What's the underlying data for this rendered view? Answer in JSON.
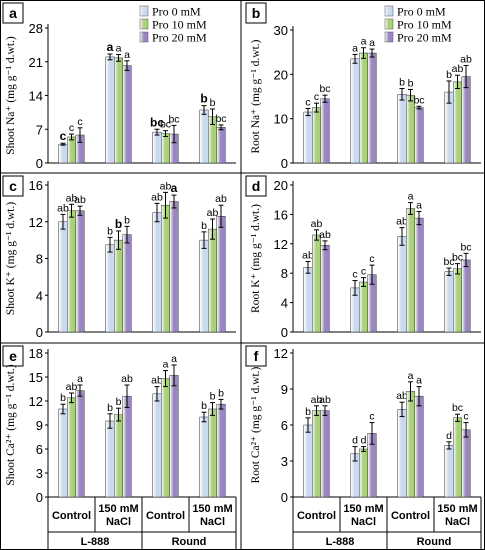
{
  "legend": [
    "Pro 0 mM",
    "Pro 10 mM",
    "Pro 20 mM"
  ],
  "colors": {
    "pro0": "#c9d9f0",
    "pro10": "#a9d07a",
    "pro20": "#9a86c0",
    "border": "#000000"
  },
  "groups": {
    "treatments": [
      "Control",
      "150 mM NaCl",
      "Control",
      "150 mM NaCl"
    ],
    "varieties": [
      "L-888",
      "Round"
    ]
  },
  "chart_data": [
    {
      "panel": "a",
      "type": "bar",
      "ylabel": "Shoot Na⁺ (mg g⁻¹ d.wt.)",
      "ylim": [
        0,
        28
      ],
      "yticks": [
        0,
        7,
        14,
        21,
        28
      ],
      "categories": [
        "L-888 Control",
        "L-888 150 mM NaCl",
        "Round Control",
        "Round 150 mM NaCl"
      ],
      "series": [
        {
          "name": "Pro 0 mM",
          "values": [
            3.9,
            22.0,
            6.4,
            11.0
          ],
          "errors": [
            0.2,
            0.6,
            0.6,
            0.9
          ]
        },
        {
          "name": "Pro 10 mM",
          "values": [
            5.4,
            21.8,
            6.1,
            9.6
          ],
          "errors": [
            0.6,
            0.7,
            0.6,
            1.6
          ]
        },
        {
          "name": "Pro 20 mM",
          "values": [
            5.8,
            20.2,
            6.0,
            7.4
          ],
          "errors": [
            1.5,
            1.0,
            1.8,
            0.5
          ]
        }
      ],
      "labels": [
        [
          "c",
          "a",
          "bc",
          "b"
        ],
        [
          "c",
          "a",
          "bc",
          "b"
        ],
        [
          "c",
          "a",
          "bc",
          "bc"
        ]
      ]
    },
    {
      "panel": "b",
      "type": "bar",
      "ylabel": "Root Na⁺ (mg g⁻¹ d.wt.)",
      "ylim": [
        0,
        30
      ],
      "yticks": [
        0,
        10,
        20,
        30
      ],
      "categories": [
        "L-888 Control",
        "L-888 150 mM NaCl",
        "Round Control",
        "Round 150 mM NaCl"
      ],
      "series": [
        {
          "name": "Pro 0 mM",
          "values": [
            11.5,
            23.5,
            15.5,
            16.0
          ],
          "errors": [
            0.8,
            1.0,
            1.3,
            2.5
          ]
        },
        {
          "name": "Pro 10 mM",
          "values": [
            12.5,
            24.8,
            15.3,
            18.3
          ],
          "errors": [
            1.0,
            1.2,
            1.3,
            1.5
          ]
        },
        {
          "name": "Pro 20 mM",
          "values": [
            14.5,
            24.8,
            12.5,
            19.5
          ],
          "errors": [
            0.8,
            0.9,
            0.3,
            2.5
          ]
        }
      ],
      "labels": [
        [
          "c",
          "a",
          "b",
          "b"
        ],
        [
          "c",
          "a",
          "b",
          "ab"
        ],
        [
          "bc",
          "a",
          "bc",
          "ab"
        ]
      ]
    },
    {
      "panel": "c",
      "type": "bar",
      "ylabel": "Shoot K⁺ (mg g⁻¹ d.wt.)",
      "ylim": [
        0,
        16
      ],
      "yticks": [
        0,
        4,
        8,
        12,
        16
      ],
      "categories": [
        "L-888 Control",
        "L-888 150 mM NaCl",
        "Round Control",
        "Round 150 mM NaCl"
      ],
      "series": [
        {
          "name": "Pro 0 mM",
          "values": [
            12.0,
            9.5,
            13.0,
            10.0
          ],
          "errors": [
            0.8,
            0.8,
            1.0,
            0.9
          ]
        },
        {
          "name": "Pro 10 mM",
          "values": [
            13.2,
            10.0,
            13.8,
            11.2
          ],
          "errors": [
            0.7,
            1.0,
            1.4,
            1.1
          ]
        },
        {
          "name": "Pro 20 mM",
          "values": [
            13.2,
            10.6,
            14.2,
            12.6
          ],
          "errors": [
            0.5,
            0.9,
            0.7,
            1.2
          ]
        }
      ],
      "labels": [
        [
          "ab",
          "b",
          "ab",
          "b"
        ],
        [
          "ab",
          "b",
          "ab",
          "ab"
        ],
        [
          "ab",
          "b",
          "a",
          "ab"
        ]
      ]
    },
    {
      "panel": "d",
      "type": "bar",
      "ylabel": "Root K⁺ (mg g⁻¹ d.wt.)",
      "ylim": [
        0,
        20
      ],
      "yticks": [
        0,
        4,
        8,
        12,
        16,
        20
      ],
      "categories": [
        "L-888 Control",
        "L-888 150 mM NaCl",
        "Round Control",
        "Round 150 mM NaCl"
      ],
      "series": [
        {
          "name": "Pro 0 mM",
          "values": [
            8.8,
            6.0,
            13.0,
            8.2
          ],
          "errors": [
            0.8,
            1.0,
            1.2,
            0.5
          ]
        },
        {
          "name": "Pro 10 mM",
          "values": [
            13.2,
            6.8,
            16.8,
            8.6
          ],
          "errors": [
            0.7,
            0.6,
            0.8,
            0.7
          ]
        },
        {
          "name": "Pro 20 mM",
          "values": [
            11.8,
            7.8,
            15.5,
            9.8
          ],
          "errors": [
            0.6,
            1.3,
            0.9,
            0.9
          ]
        }
      ],
      "labels": [
        [
          "ab",
          "c",
          "ab",
          "bc"
        ],
        [
          "ab",
          "c",
          "a",
          "bc"
        ],
        [
          "ab",
          "c",
          "a",
          "bc"
        ]
      ]
    },
    {
      "panel": "e",
      "type": "bar",
      "ylabel": "Shoot Ca²⁺ (mg g⁻¹ d.wt.)",
      "ylim": [
        0,
        18
      ],
      "yticks": [
        0,
        3,
        6,
        9,
        12,
        15,
        18
      ],
      "categories": [
        "L-888 Control",
        "L-888 150 mM NaCl",
        "Round Control",
        "Round 150 mM NaCl"
      ],
      "series": [
        {
          "name": "Pro 0 mM",
          "values": [
            11.0,
            9.5,
            12.9,
            10.0
          ],
          "errors": [
            0.6,
            0.9,
            0.9,
            0.6
          ]
        },
        {
          "name": "Pro 10 mM",
          "values": [
            12.4,
            10.3,
            14.8,
            11.0
          ],
          "errors": [
            0.6,
            0.8,
            1.0,
            0.8
          ]
        },
        {
          "name": "Pro 20 mM",
          "values": [
            13.3,
            12.6,
            15.2,
            11.6
          ],
          "errors": [
            0.7,
            1.4,
            1.3,
            0.6
          ]
        }
      ],
      "labels": [
        [
          "b",
          "b",
          "ab",
          "b"
        ],
        [
          "ab",
          "b",
          "a",
          "b"
        ],
        [
          "a",
          "ab",
          "a",
          "b"
        ]
      ]
    },
    {
      "panel": "f",
      "type": "bar",
      "ylabel": "Root Ca²⁺ (mg g⁻¹ d.wt.)",
      "ylim": [
        0,
        12
      ],
      "yticks": [
        0,
        3,
        6,
        9,
        12
      ],
      "categories": [
        "L-888 Control",
        "L-888 150 mM NaCl",
        "Round Control",
        "Round 150 mM NaCl"
      ],
      "series": [
        {
          "name": "Pro 0 mM",
          "values": [
            6.0,
            3.6,
            7.3,
            4.3
          ],
          "errors": [
            0.6,
            0.6,
            0.6,
            0.3
          ]
        },
        {
          "name": "Pro 10 mM",
          "values": [
            7.2,
            4.0,
            8.8,
            6.6
          ],
          "errors": [
            0.4,
            0.2,
            0.8,
            0.3
          ]
        },
        {
          "name": "Pro 20 mM",
          "values": [
            7.2,
            5.3,
            8.4,
            5.6
          ],
          "errors": [
            0.4,
            0.9,
            0.8,
            0.6
          ]
        }
      ],
      "labels": [
        [
          "b",
          "d",
          "ab",
          "d"
        ],
        [
          "ab",
          "d",
          "a",
          "bc"
        ],
        [
          "ab",
          "c",
          "a",
          "c"
        ]
      ]
    }
  ]
}
